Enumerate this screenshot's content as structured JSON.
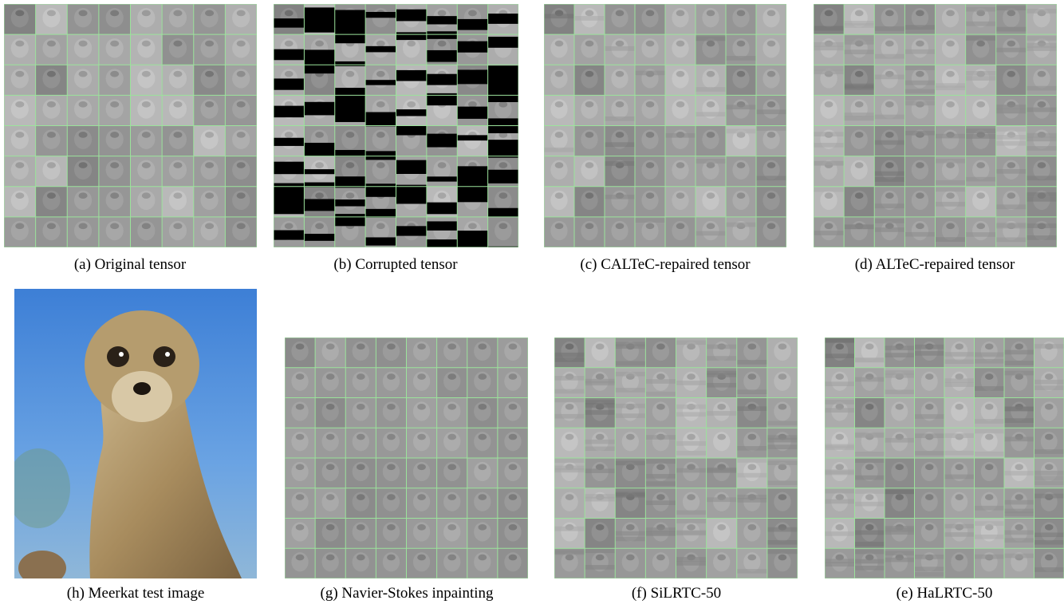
{
  "panels": [
    {
      "caption": "(a) Original tensor"
    },
    {
      "caption": "(b) Corrupted tensor"
    },
    {
      "caption": "(c) CALTeC-repaired tensor"
    },
    {
      "caption": "(d) ALTeC-repaired tensor"
    },
    {
      "caption": "(h) Meerkat test image"
    },
    {
      "caption": "(g) Navier-Stokes inpainting"
    },
    {
      "caption": "(f) SiLRTC-50"
    },
    {
      "caption": "(e) HaLRTC-50"
    }
  ]
}
